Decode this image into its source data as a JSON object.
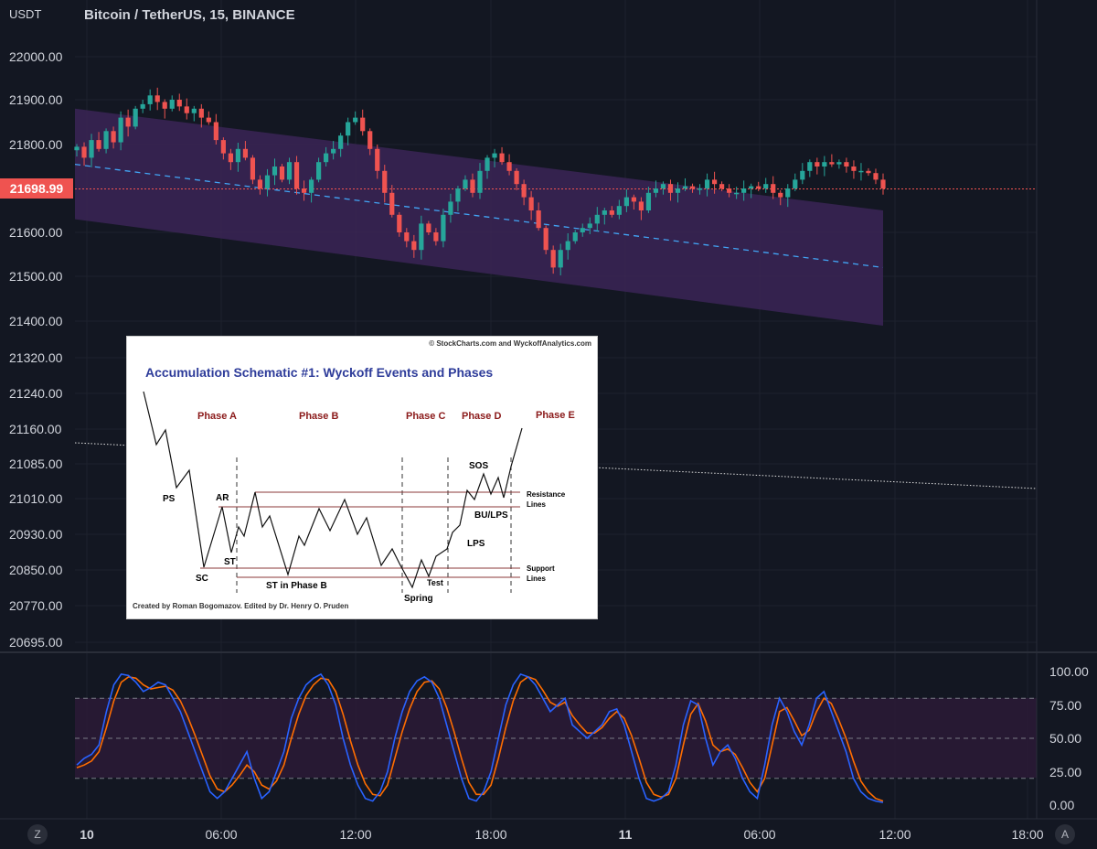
{
  "header": {
    "currency": "USDT",
    "symbol_title": "Bitcoin / TetherUS, 15, BINANCE"
  },
  "price_axis": {
    "labels": [
      "22000.00",
      "21900.00",
      "21800.00",
      "21600.00",
      "21500.00",
      "21400.00",
      "21320.00",
      "21240.00",
      "21160.00",
      "21085.00",
      "21010.00",
      "20930.00",
      "20850.00",
      "20770.00",
      "20695.00"
    ],
    "current_price": "21698.99"
  },
  "oscillator_axis": {
    "labels": [
      "100.00",
      "75.00",
      "50.00",
      "25.00",
      "0.00"
    ]
  },
  "time_axis": {
    "labels": [
      "10",
      "06:00",
      "12:00",
      "18:00",
      "11",
      "06:00",
      "12:00",
      "18:00"
    ]
  },
  "buttons": {
    "left": "Z",
    "right": "A"
  },
  "schematic": {
    "credit_top": "© StockCharts.com and WyckoffAnalytics.com",
    "title": "Accumulation Schematic #1: Wyckoff Events and Phases",
    "credit_bottom": "Created by Roman Bogomazov. Edited by Dr. Henry O. Pruden",
    "phases": [
      "Phase A",
      "Phase B",
      "Phase C",
      "Phase D",
      "Phase E"
    ],
    "events": {
      "ps": "PS",
      "ar": "AR",
      "sc": "SC",
      "st": "ST",
      "st_phase_b": "ST in Phase B",
      "spring": "Spring",
      "test": "Test",
      "sos": "SOS",
      "bu_lps": "BU/LPS",
      "lps": "LPS"
    },
    "resistance_label": [
      "Resistance",
      "Lines"
    ],
    "support_label": [
      "Support",
      "Lines"
    ]
  },
  "colors": {
    "background": "#131722",
    "up_candle": "#26a69a",
    "down_candle": "#ef5350",
    "channel_fill": "#3b2456",
    "midline": "#42a5f5",
    "stoch_k": "#2962ff",
    "stoch_d": "#ff6d00",
    "schematic_title": "#2e3c9a",
    "phase_label": "#8b1a1a"
  },
  "chart_data": [
    {
      "type": "candlestick",
      "title": "Bitcoin / TetherUS, 15, BINANCE",
      "ylabel": "USDT",
      "ylim": [
        20660,
        22080
      ],
      "x_ticks": [
        "10",
        "06:00",
        "12:00",
        "18:00",
        "11",
        "06:00",
        "12:00",
        "18:00"
      ],
      "last_price": 21698.99,
      "regression_channel": {
        "upper_start": 21880,
        "upper_end": 21650,
        "middle_start": 21755,
        "middle_end": 21520,
        "lower_start": 21630,
        "lower_end": 21390
      },
      "close_series": [
        21795,
        21770,
        21810,
        21790,
        21830,
        21805,
        21860,
        21840,
        21880,
        21890,
        21910,
        21895,
        21880,
        21900,
        21885,
        21870,
        21880,
        21860,
        21850,
        21810,
        21780,
        21760,
        21790,
        21770,
        21720,
        21700,
        21730,
        21750,
        21720,
        21760,
        21700,
        21690,
        21720,
        21760,
        21780,
        21790,
        21820,
        21850,
        21860,
        21830,
        21790,
        21740,
        21690,
        21640,
        21600,
        21580,
        21560,
        21620,
        21600,
        21580,
        21640,
        21670,
        21700,
        21720,
        21690,
        21740,
        21770,
        21780,
        21760,
        21740,
        21710,
        21680,
        21650,
        21610,
        21560,
        21520,
        21560,
        21580,
        21600,
        21610,
        21620,
        21640,
        21650,
        21640,
        21660,
        21680,
        21670,
        21650,
        21690,
        21700,
        21710,
        21690,
        21700,
        21705,
        21700,
        21700,
        21720,
        21710,
        21700,
        21690,
        21690,
        21700,
        21705,
        21700,
        21710,
        21690,
        21680,
        21700,
        21720,
        21740,
        21760,
        21750,
        21760,
        21755,
        21760,
        21750,
        21740,
        21740,
        21735,
        21720,
        21700
      ]
    },
    {
      "type": "line",
      "title": "",
      "ylim": [
        -10,
        110
      ],
      "series": [
        {
          "values": [
            30,
            35,
            38,
            45,
            70,
            90,
            98,
            97,
            92,
            85,
            88,
            92,
            90,
            80,
            70,
            55,
            40,
            25,
            10,
            5,
            10,
            20,
            30,
            40,
            20,
            5,
            10,
            25,
            40,
            65,
            80,
            90,
            95,
            98,
            90,
            75,
            50,
            30,
            15,
            5,
            3,
            10,
            25,
            50,
            70,
            85,
            93,
            96,
            92,
            80,
            60,
            40,
            20,
            5,
            3,
            10,
            25,
            50,
            75,
            90,
            98,
            96,
            90,
            80,
            70,
            75,
            80,
            60,
            55,
            50,
            55,
            60,
            70,
            72,
            60,
            40,
            20,
            5,
            3,
            5,
            10,
            30,
            60,
            78,
            75,
            50,
            30,
            40,
            45,
            35,
            20,
            10,
            5,
            30,
            60,
            80,
            70,
            55,
            45,
            60,
            80,
            85,
            70,
            55,
            40,
            20,
            10,
            5,
            3,
            2
          ]
        },
        {
          "values": [
            28,
            30,
            33,
            40,
            58,
            78,
            92,
            96,
            95,
            90,
            87,
            88,
            89,
            86,
            78,
            66,
            52,
            37,
            22,
            12,
            10,
            15,
            22,
            30,
            25,
            15,
            12,
            18,
            30,
            50,
            68,
            82,
            90,
            95,
            94,
            85,
            68,
            48,
            30,
            16,
            8,
            7,
            15,
            35,
            55,
            72,
            85,
            92,
            93,
            87,
            73,
            55,
            35,
            17,
            8,
            8,
            15,
            35,
            58,
            78,
            92,
            96,
            94,
            86,
            77,
            74,
            77,
            67,
            60,
            54,
            54,
            58,
            65,
            70,
            65,
            52,
            35,
            17,
            8,
            6,
            8,
            20,
            45,
            68,
            76,
            63,
            45,
            40,
            42,
            38,
            28,
            17,
            10,
            20,
            45,
            70,
            73,
            63,
            52,
            56,
            70,
            80,
            76,
            64,
            50,
            33,
            18,
            10,
            5,
            3
          ]
        }
      ],
      "y_ticks": [
        "100.00",
        "75.00",
        "50.00",
        "25.00",
        "0.00"
      ]
    }
  ]
}
